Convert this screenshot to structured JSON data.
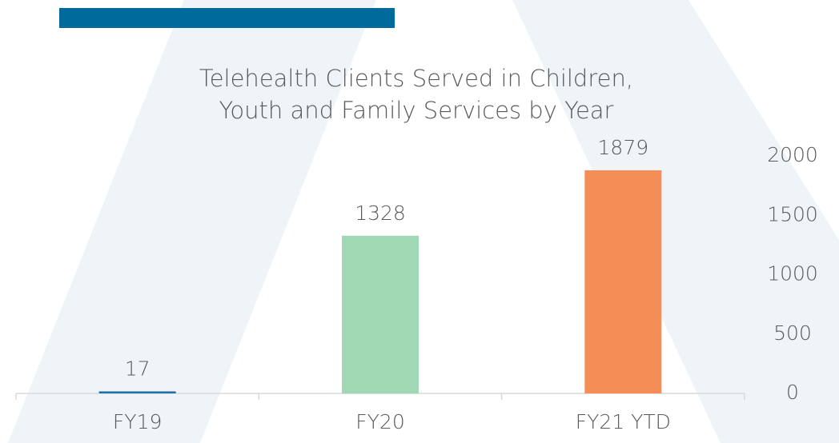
{
  "chart_data": {
    "type": "bar",
    "title": "Telehealth Clients Served in Children, Youth and Family Services by Year",
    "categories": [
      "FY19",
      "FY20",
      "FY21 YTD"
    ],
    "values": [
      17,
      1328,
      1879
    ],
    "colors": [
      "#1f6fa8",
      "#a0d8b3",
      "#f58d57"
    ],
    "ylim": [
      0,
      2000
    ],
    "yticks": [
      0,
      500,
      1000,
      1500,
      2000
    ],
    "grid": false,
    "y_axis_side": "right"
  }
}
